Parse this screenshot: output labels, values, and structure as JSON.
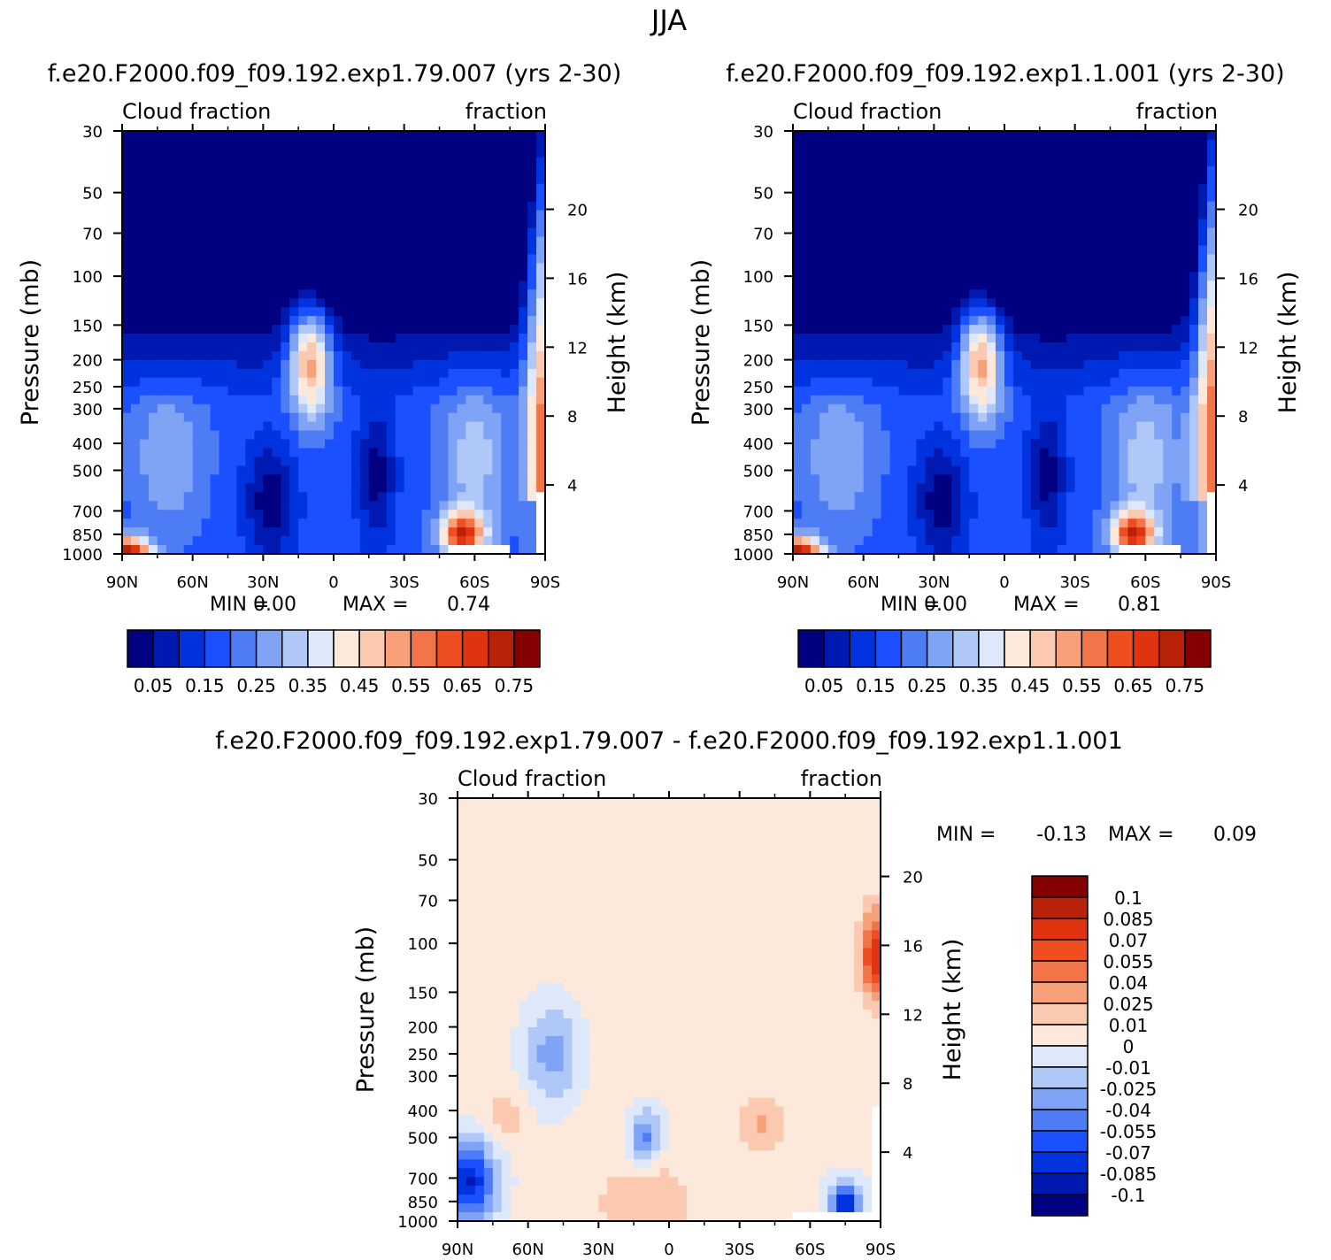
{
  "figure_title": "JJA",
  "colors": {
    "abs_scale": [
      "#000080",
      "#0019b0",
      "#0033dd",
      "#1a50ff",
      "#4d7cf5",
      "#7fa3f5",
      "#b0c8f7",
      "#dde8fb",
      "#fde9dc",
      "#fbc9b0",
      "#f7a07a",
      "#f27549",
      "#ef4f20",
      "#e03410",
      "#b82208",
      "#850000"
    ],
    "diff_scale": [
      "#000080",
      "#0019b0",
      "#0033dd",
      "#1a50ff",
      "#4d7cf5",
      "#7fa3f5",
      "#b0c8f7",
      "#dde8fb",
      "#fde9dc",
      "#fbc9b0",
      "#f7a07a",
      "#f27549",
      "#ef4f20",
      "#e03410",
      "#b82208",
      "#850000"
    ]
  },
  "chart_data": [
    {
      "type": "heatmap",
      "id": "panel-a",
      "title": "f.e20.F2000.f09_f09.192.exp1.79.007 (yrs 2-30)",
      "left_label": "Cloud fraction",
      "right_label": "fraction",
      "ylabel": "Pressure (mb)",
      "y2label": "Height (km)",
      "x_ticks": [
        "90N",
        "60N",
        "30N",
        "0",
        "30S",
        "60S",
        "90S"
      ],
      "x_values": [
        90,
        60,
        30,
        0,
        -30,
        -60,
        -90
      ],
      "xlim": [
        90,
        -90
      ],
      "y_ticks": [
        "30",
        "50",
        "70",
        "100",
        "150",
        "200",
        "250",
        "300",
        "400",
        "500",
        "700",
        "850",
        "1000"
      ],
      "y_values": [
        30,
        50,
        70,
        100,
        150,
        200,
        250,
        300,
        400,
        500,
        700,
        850,
        1000
      ],
      "ylim": [
        30,
        1000
      ],
      "y2_ticks": [
        "20",
        "16",
        "12",
        "8",
        "4"
      ],
      "y2_values": [
        20,
        16,
        12,
        8,
        4
      ],
      "min_label": "MIN =",
      "min_value": "0.00",
      "max_label": "MAX =",
      "max_value": "0.74",
      "legend_labels": [
        "0.05",
        "0.15",
        "0.25",
        "0.35",
        "0.45",
        "0.55",
        "0.65",
        "0.75"
      ],
      "levels": [
        0.05,
        0.1,
        0.15,
        0.2,
        0.25,
        0.3,
        0.35,
        0.4,
        0.45,
        0.5,
        0.55,
        0.6,
        0.65,
        0.7,
        0.75
      ]
    },
    {
      "type": "heatmap",
      "id": "panel-b",
      "title": "f.e20.F2000.f09_f09.192.exp1.1.001 (yrs 2-30)",
      "left_label": "Cloud fraction",
      "right_label": "fraction",
      "ylabel": "Pressure (mb)",
      "y2label": "Height (km)",
      "x_ticks": [
        "90N",
        "60N",
        "30N",
        "0",
        "30S",
        "60S",
        "90S"
      ],
      "x_values": [
        90,
        60,
        30,
        0,
        -30,
        -60,
        -90
      ],
      "xlim": [
        90,
        -90
      ],
      "y_ticks": [
        "30",
        "50",
        "70",
        "100",
        "150",
        "200",
        "250",
        "300",
        "400",
        "500",
        "700",
        "850",
        "1000"
      ],
      "y_values": [
        30,
        50,
        70,
        100,
        150,
        200,
        250,
        300,
        400,
        500,
        700,
        850,
        1000
      ],
      "ylim": [
        30,
        1000
      ],
      "y2_ticks": [
        "20",
        "16",
        "12",
        "8",
        "4"
      ],
      "y2_values": [
        20,
        16,
        12,
        8,
        4
      ],
      "min_label": "MIN =",
      "min_value": "0.00",
      "max_label": "MAX =",
      "max_value": "0.81",
      "legend_labels": [
        "0.05",
        "0.15",
        "0.25",
        "0.35",
        "0.45",
        "0.55",
        "0.65",
        "0.75"
      ],
      "levels": [
        0.05,
        0.1,
        0.15,
        0.2,
        0.25,
        0.3,
        0.35,
        0.4,
        0.45,
        0.5,
        0.55,
        0.6,
        0.65,
        0.7,
        0.75
      ]
    },
    {
      "type": "heatmap",
      "id": "panel-diff",
      "title": "f.e20.F2000.f09_f09.192.exp1.79.007 - f.e20.F2000.f09_f09.192.exp1.1.001",
      "left_label": "Cloud fraction",
      "right_label": "fraction",
      "ylabel": "Pressure (mb)",
      "y2label": "Height (km)",
      "x_ticks": [
        "90N",
        "60N",
        "30N",
        "0",
        "30S",
        "60S",
        "90S"
      ],
      "x_values": [
        90,
        60,
        30,
        0,
        -30,
        -60,
        -90
      ],
      "xlim": [
        90,
        -90
      ],
      "y_ticks": [
        "30",
        "50",
        "70",
        "100",
        "150",
        "200",
        "250",
        "300",
        "400",
        "500",
        "700",
        "850",
        "1000"
      ],
      "y_values": [
        30,
        50,
        70,
        100,
        150,
        200,
        250,
        300,
        400,
        500,
        700,
        850,
        1000
      ],
      "ylim": [
        30,
        1000
      ],
      "y2_ticks": [
        "20",
        "16",
        "12",
        "8",
        "4"
      ],
      "y2_values": [
        20,
        16,
        12,
        8,
        4
      ],
      "min_label": "MIN =",
      "min_value": "-0.13",
      "max_label": "MAX =",
      "max_value": "0.09",
      "legend_labels": [
        "0.1",
        "0.085",
        "0.07",
        "0.055",
        "0.04",
        "0.025",
        "0.01",
        "0",
        "-0.01",
        "-0.025",
        "-0.04",
        "-0.055",
        "-0.07",
        "-0.085",
        "-0.1"
      ],
      "levels": [
        -0.1,
        -0.085,
        -0.07,
        -0.055,
        -0.04,
        -0.025,
        -0.01,
        0,
        0.01,
        0.025,
        0.04,
        0.055,
        0.07,
        0.085,
        0.1
      ]
    }
  ]
}
